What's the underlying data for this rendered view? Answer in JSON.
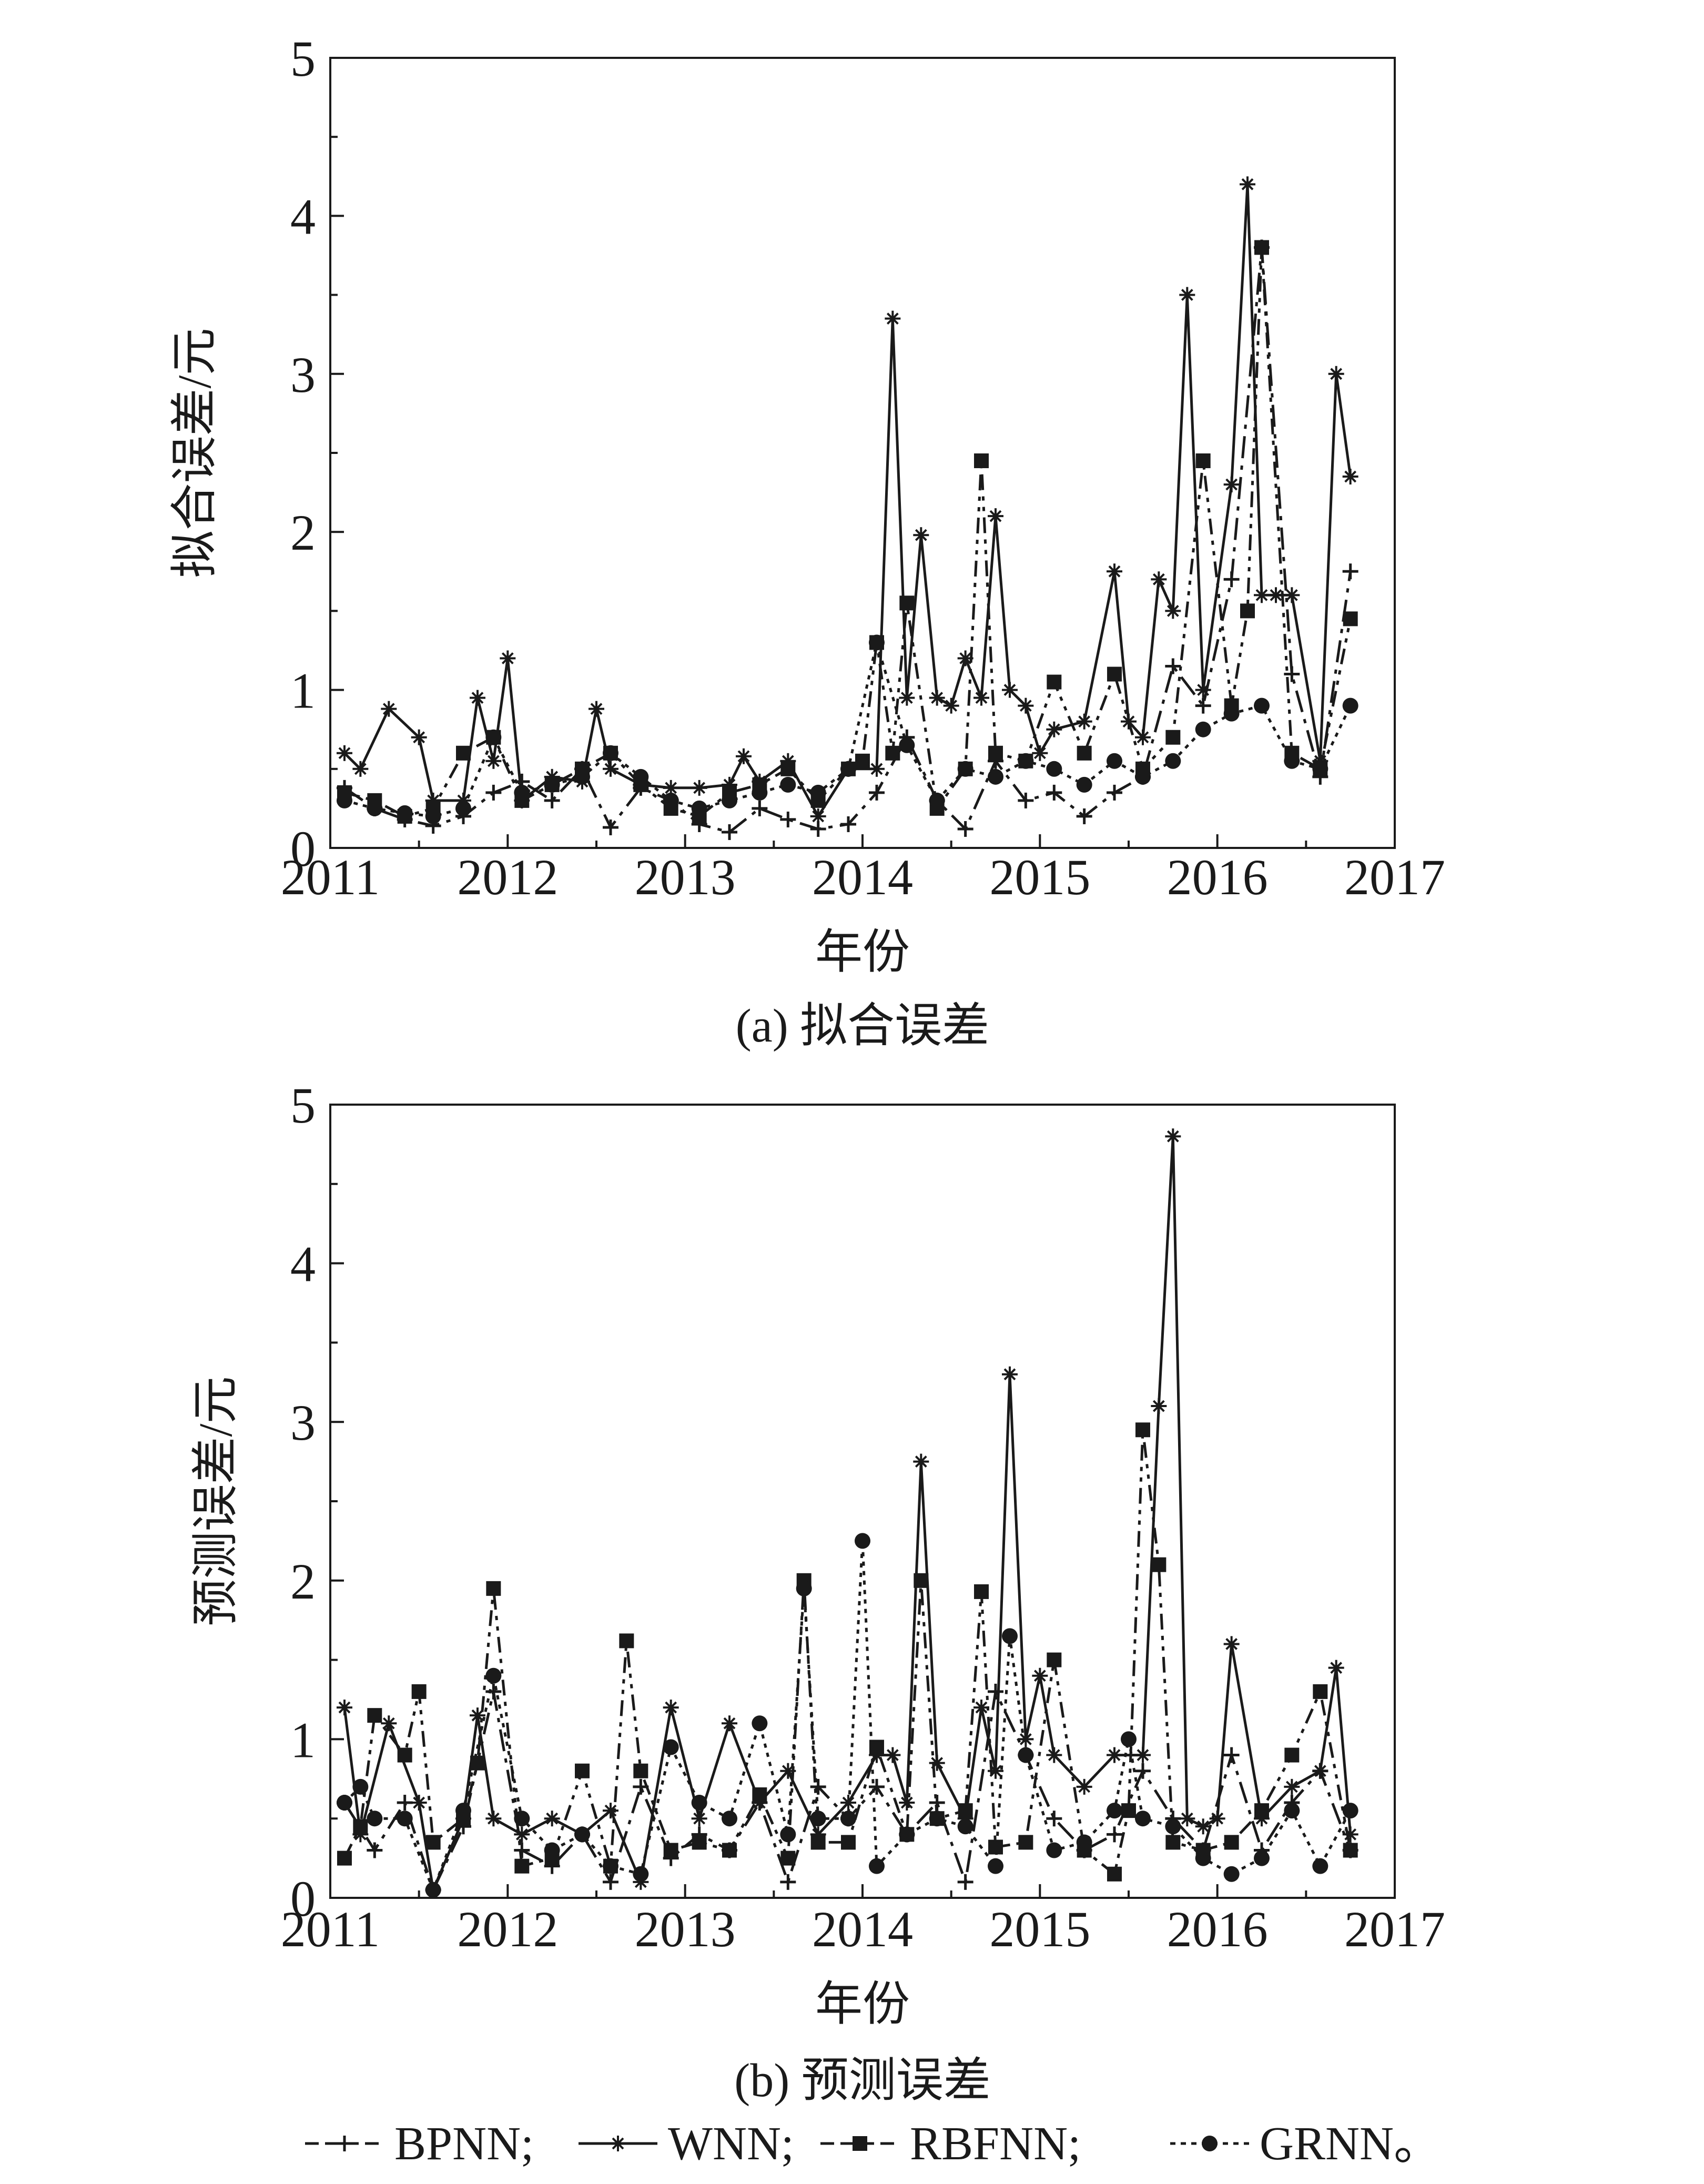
{
  "chart_data": [
    {
      "type": "line",
      "caption": "(a) 拟合误差",
      "xlabel": "年份",
      "ylabel": "拟合误差/元",
      "xlim": [
        2011,
        2017
      ],
      "ylim": [
        0,
        5
      ],
      "xticks": [
        2011,
        2012,
        2013,
        2014,
        2015,
        2016,
        2017
      ],
      "yticks": [
        0,
        1,
        2,
        3,
        4,
        5
      ],
      "grid": false,
      "series": [
        {
          "name": "BPNN",
          "x": [
            2011.08,
            2011.25,
            2011.42,
            2011.58,
            2011.75,
            2011.92,
            2012.08,
            2012.25,
            2012.42,
            2012.58,
            2012.75,
            2012.92,
            2013.08,
            2013.25,
            2013.42,
            2013.58,
            2013.75,
            2013.92,
            2014.08,
            2014.25,
            2014.42,
            2014.58,
            2014.75,
            2014.92,
            2015.08,
            2015.25,
            2015.42,
            2015.58,
            2015.75,
            2015.92,
            2016.08,
            2016.25,
            2016.42,
            2016.58,
            2016.75
          ],
          "y": [
            0.38,
            0.25,
            0.18,
            0.14,
            0.2,
            0.35,
            0.42,
            0.3,
            0.5,
            0.13,
            0.38,
            0.3,
            0.15,
            0.1,
            0.25,
            0.18,
            0.12,
            0.15,
            0.35,
            0.7,
            0.3,
            0.12,
            0.55,
            0.3,
            0.35,
            0.2,
            0.35,
            0.45,
            1.15,
            0.9,
            1.7,
            3.8,
            1.1,
            0.45,
            1.75
          ]
        },
        {
          "name": "WNN",
          "x": [
            2011.08,
            2011.17,
            2011.33,
            2011.5,
            2011.58,
            2011.75,
            2011.83,
            2011.92,
            2012.0,
            2012.08,
            2012.25,
            2012.42,
            2012.5,
            2012.58,
            2012.75,
            2012.92,
            2013.08,
            2013.25,
            2013.33,
            2013.42,
            2013.58,
            2013.75,
            2013.92,
            2014.08,
            2014.17,
            2014.25,
            2014.33,
            2014.42,
            2014.5,
            2014.58,
            2014.67,
            2014.75,
            2014.83,
            2014.92,
            2015.0,
            2015.08,
            2015.25,
            2015.42,
            2015.5,
            2015.58,
            2015.67,
            2015.75,
            2015.83,
            2015.92,
            2016.08,
            2016.17,
            2016.25,
            2016.33,
            2016.42,
            2016.58,
            2016.67,
            2016.75
          ],
          "y": [
            0.6,
            0.5,
            0.88,
            0.7,
            0.3,
            0.3,
            0.95,
            0.55,
            1.2,
            0.3,
            0.45,
            0.42,
            0.88,
            0.5,
            0.4,
            0.38,
            0.38,
            0.4,
            0.58,
            0.42,
            0.55,
            0.2,
            0.5,
            0.5,
            3.35,
            0.95,
            1.98,
            0.95,
            0.9,
            1.2,
            0.95,
            2.1,
            1.0,
            0.9,
            0.6,
            0.75,
            0.8,
            1.75,
            0.8,
            0.7,
            1.7,
            1.5,
            3.5,
            1.0,
            2.3,
            4.2,
            1.6,
            1.6,
            1.6,
            0.55,
            3.0,
            2.35
          ]
        },
        {
          "name": "RBFNN",
          "x": [
            2011.08,
            2011.25,
            2011.42,
            2011.58,
            2011.75,
            2011.92,
            2012.08,
            2012.25,
            2012.42,
            2012.58,
            2012.75,
            2012.92,
            2013.08,
            2013.25,
            2013.42,
            2013.58,
            2013.75,
            2013.92,
            2014.0,
            2014.08,
            2014.17,
            2014.25,
            2014.42,
            2014.58,
            2014.67,
            2014.75,
            2014.92,
            2015.08,
            2015.25,
            2015.42,
            2015.58,
            2015.75,
            2015.92,
            2016.08,
            2016.17,
            2016.25,
            2016.42,
            2016.58,
            2016.75
          ],
          "y": [
            0.35,
            0.3,
            0.2,
            0.25,
            0.6,
            0.7,
            0.3,
            0.4,
            0.5,
            0.6,
            0.4,
            0.25,
            0.2,
            0.35,
            0.4,
            0.5,
            0.3,
            0.5,
            0.55,
            1.3,
            0.6,
            1.55,
            0.25,
            0.5,
            2.45,
            0.6,
            0.55,
            1.05,
            0.6,
            1.1,
            0.5,
            0.7,
            2.45,
            0.9,
            1.5,
            3.8,
            0.6,
            0.5,
            1.45
          ]
        },
        {
          "name": "GRNN",
          "x": [
            2011.08,
            2011.25,
            2011.42,
            2011.58,
            2011.75,
            2011.92,
            2012.08,
            2012.25,
            2012.42,
            2012.58,
            2012.75,
            2012.92,
            2013.08,
            2013.25,
            2013.42,
            2013.58,
            2013.75,
            2013.92,
            2014.08,
            2014.25,
            2014.42,
            2014.58,
            2014.75,
            2014.92,
            2015.08,
            2015.25,
            2015.42,
            2015.58,
            2015.75,
            2015.92,
            2016.08,
            2016.25,
            2016.42,
            2016.58,
            2016.75
          ],
          "y": [
            0.3,
            0.25,
            0.22,
            0.2,
            0.25,
            0.7,
            0.35,
            0.4,
            0.45,
            0.6,
            0.45,
            0.3,
            0.25,
            0.3,
            0.35,
            0.4,
            0.35,
            0.5,
            1.3,
            0.65,
            0.3,
            0.5,
            0.45,
            0.55,
            0.5,
            0.4,
            0.55,
            0.45,
            0.55,
            0.75,
            0.85,
            0.9,
            0.55,
            0.5,
            0.9
          ]
        }
      ]
    },
    {
      "type": "line",
      "caption": "(b) 预测误差",
      "xlabel": "年份",
      "ylabel": "预测误差/元",
      "xlim": [
        2011,
        2017
      ],
      "ylim": [
        0,
        5
      ],
      "xticks": [
        2011,
        2012,
        2013,
        2014,
        2015,
        2016,
        2017
      ],
      "yticks": [
        0,
        1,
        2,
        3,
        4,
        5
      ],
      "grid": false,
      "series": [
        {
          "name": "BPNN",
          "x": [
            2011.08,
            2011.25,
            2011.42,
            2011.58,
            2011.75,
            2011.92,
            2012.08,
            2012.25,
            2012.42,
            2012.58,
            2012.75,
            2012.92,
            2013.08,
            2013.25,
            2013.42,
            2013.58,
            2013.75,
            2013.92,
            2014.08,
            2014.25,
            2014.42,
            2014.58,
            2014.75,
            2014.92,
            2015.08,
            2015.25,
            2015.42,
            2015.58,
            2015.75,
            2015.92,
            2016.08,
            2016.25,
            2016.42,
            2016.58,
            2016.75
          ],
          "y": [
            0.6,
            0.3,
            0.6,
            0.05,
            0.45,
            1.3,
            0.3,
            0.2,
            0.4,
            0.1,
            0.7,
            0.25,
            0.4,
            0.3,
            0.6,
            0.1,
            0.7,
            0.5,
            0.7,
            0.4,
            0.6,
            0.1,
            1.3,
            0.9,
            0.5,
            0.3,
            0.4,
            0.8,
            0.5,
            0.3,
            0.9,
            0.3,
            0.6,
            0.8,
            0.3
          ]
        },
        {
          "name": "WNN",
          "x": [
            2011.08,
            2011.17,
            2011.33,
            2011.5,
            2011.58,
            2011.75,
            2011.83,
            2011.92,
            2012.08,
            2012.25,
            2012.42,
            2012.58,
            2012.75,
            2012.92,
            2013.08,
            2013.25,
            2013.42,
            2013.58,
            2013.75,
            2013.92,
            2014.08,
            2014.17,
            2014.25,
            2014.33,
            2014.42,
            2014.58,
            2014.67,
            2014.75,
            2014.83,
            2014.92,
            2015.0,
            2015.08,
            2015.25,
            2015.42,
            2015.58,
            2015.67,
            2015.75,
            2015.83,
            2015.92,
            2016.0,
            2016.08,
            2016.25,
            2016.42,
            2016.58,
            2016.67,
            2016.75
          ],
          "y": [
            1.2,
            0.4,
            1.1,
            0.6,
            0.05,
            0.5,
            1.15,
            0.5,
            0.4,
            0.5,
            0.4,
            0.55,
            0.1,
            1.2,
            0.5,
            1.1,
            0.6,
            0.8,
            0.4,
            0.6,
            0.9,
            0.9,
            0.6,
            2.75,
            0.85,
            0.5,
            1.2,
            0.8,
            3.3,
            1.0,
            1.4,
            0.9,
            0.7,
            0.9,
            0.9,
            3.1,
            4.8,
            0.5,
            0.45,
            0.5,
            1.6,
            0.5,
            0.7,
            0.8,
            1.45,
            0.4
          ]
        },
        {
          "name": "RBFNN",
          "x": [
            2011.08,
            2011.17,
            2011.25,
            2011.42,
            2011.5,
            2011.58,
            2011.75,
            2011.83,
            2011.92,
            2012.08,
            2012.25,
            2012.42,
            2012.58,
            2012.67,
            2012.75,
            2012.92,
            2013.08,
            2013.25,
            2013.42,
            2013.58,
            2013.67,
            2013.75,
            2013.92,
            2014.08,
            2014.25,
            2014.33,
            2014.42,
            2014.58,
            2014.67,
            2014.75,
            2014.92,
            2015.08,
            2015.25,
            2015.42,
            2015.5,
            2015.58,
            2015.67,
            2015.75,
            2015.92,
            2016.08,
            2016.25,
            2016.42,
            2016.58,
            2016.75
          ],
          "y": [
            0.25,
            0.45,
            1.15,
            0.9,
            1.3,
            0.35,
            0.5,
            0.85,
            1.95,
            0.2,
            0.25,
            0.8,
            0.2,
            1.62,
            0.8,
            0.3,
            0.35,
            0.3,
            0.65,
            0.25,
            2.0,
            0.35,
            0.35,
            0.95,
            0.4,
            2.0,
            0.5,
            0.55,
            1.93,
            0.32,
            0.35,
            1.5,
            0.3,
            0.15,
            0.55,
            2.95,
            2.1,
            0.35,
            0.3,
            0.35,
            0.55,
            0.9,
            1.3,
            0.3
          ]
        },
        {
          "name": "GRNN",
          "x": [
            2011.08,
            2011.17,
            2011.25,
            2011.42,
            2011.58,
            2011.75,
            2011.92,
            2012.08,
            2012.25,
            2012.42,
            2012.58,
            2012.75,
            2012.92,
            2013.08,
            2013.25,
            2013.42,
            2013.58,
            2013.67,
            2013.75,
            2013.92,
            2014.0,
            2014.08,
            2014.25,
            2014.42,
            2014.58,
            2014.75,
            2014.83,
            2014.92,
            2015.08,
            2015.25,
            2015.42,
            2015.5,
            2015.58,
            2015.75,
            2015.92,
            2016.08,
            2016.25,
            2016.42,
            2016.58,
            2016.75
          ],
          "y": [
            0.6,
            0.7,
            0.5,
            0.5,
            0.05,
            0.55,
            1.4,
            0.5,
            0.3,
            0.4,
            0.2,
            0.15,
            0.95,
            0.6,
            0.5,
            1.1,
            0.4,
            1.95,
            0.5,
            0.5,
            2.25,
            0.2,
            0.4,
            0.5,
            0.45,
            0.2,
            1.65,
            0.9,
            0.3,
            0.35,
            0.55,
            1.0,
            0.5,
            0.45,
            0.25,
            0.15,
            0.25,
            0.55,
            0.2,
            0.55
          ]
        }
      ]
    }
  ],
  "legend": {
    "items": [
      {
        "name": "BPNN",
        "label": "BPNN;"
      },
      {
        "name": "WNN",
        "label": "WNN;"
      },
      {
        "name": "RBFNN",
        "label": "RBFNN;"
      },
      {
        "name": "GRNN",
        "label": "GRNN。"
      }
    ],
    "placement": "bottom"
  },
  "styles": {
    "line_color": "#1a1a1a",
    "BPNN": {
      "dash": "42 14 8 14",
      "marker": "plus"
    },
    "WNN": {
      "dash": "none",
      "marker": "star"
    },
    "RBFNN": {
      "dash": "30 12 8 12 8 12",
      "marker": "square"
    },
    "GRNN": {
      "dash": "8 10",
      "marker": "circle"
    }
  }
}
